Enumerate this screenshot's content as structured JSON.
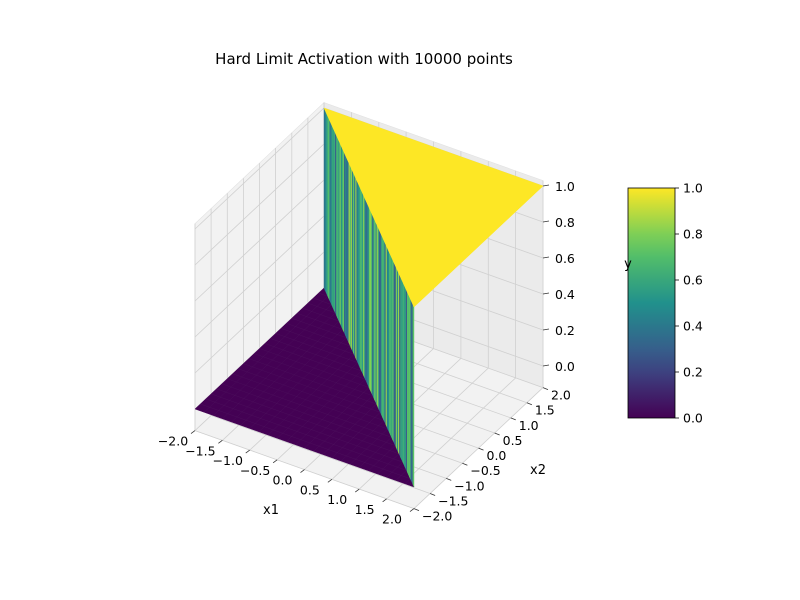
{
  "chart_data": {
    "type": "surface3d",
    "title": "Hard Limit Activation with 10000 points",
    "function": "y = hardlim(x1 + x2): 1 where x1 + x2 >= 0, else 0",
    "grid_points": 10000,
    "xlabel": "x1",
    "ylabel": "x2",
    "zlabel": "y",
    "xlim": [
      -2.0,
      2.0
    ],
    "ylim": [
      -2.0,
      2.0
    ],
    "zlim": [
      0.0,
      1.0
    ],
    "xticks": [
      "−2.0",
      "−1.5",
      "−1.0",
      "−0.5",
      "0.0",
      "0.5",
      "1.0",
      "1.5",
      "2.0"
    ],
    "yticks": [
      "−2.0",
      "−1.5",
      "−1.0",
      "−0.5",
      "0.0",
      "0.5",
      "1.0",
      "1.5",
      "2.0"
    ],
    "zticks": [
      "0.0",
      "0.2",
      "0.4",
      "0.6",
      "0.8",
      "1.0"
    ],
    "colormap": "viridis",
    "colormap_colors": [
      "#440154",
      "#3b528b",
      "#21918c",
      "#5ec962",
      "#fde725"
    ],
    "colorbar": {
      "range": [
        0.0,
        1.0
      ],
      "ticks": [
        "0.0",
        "0.2",
        "0.4",
        "0.6",
        "0.8",
        "1.0"
      ]
    },
    "grid": true,
    "pane_color": "#f2f2f2",
    "low_level_color": "#440154",
    "high_level_color": "#fde725"
  }
}
